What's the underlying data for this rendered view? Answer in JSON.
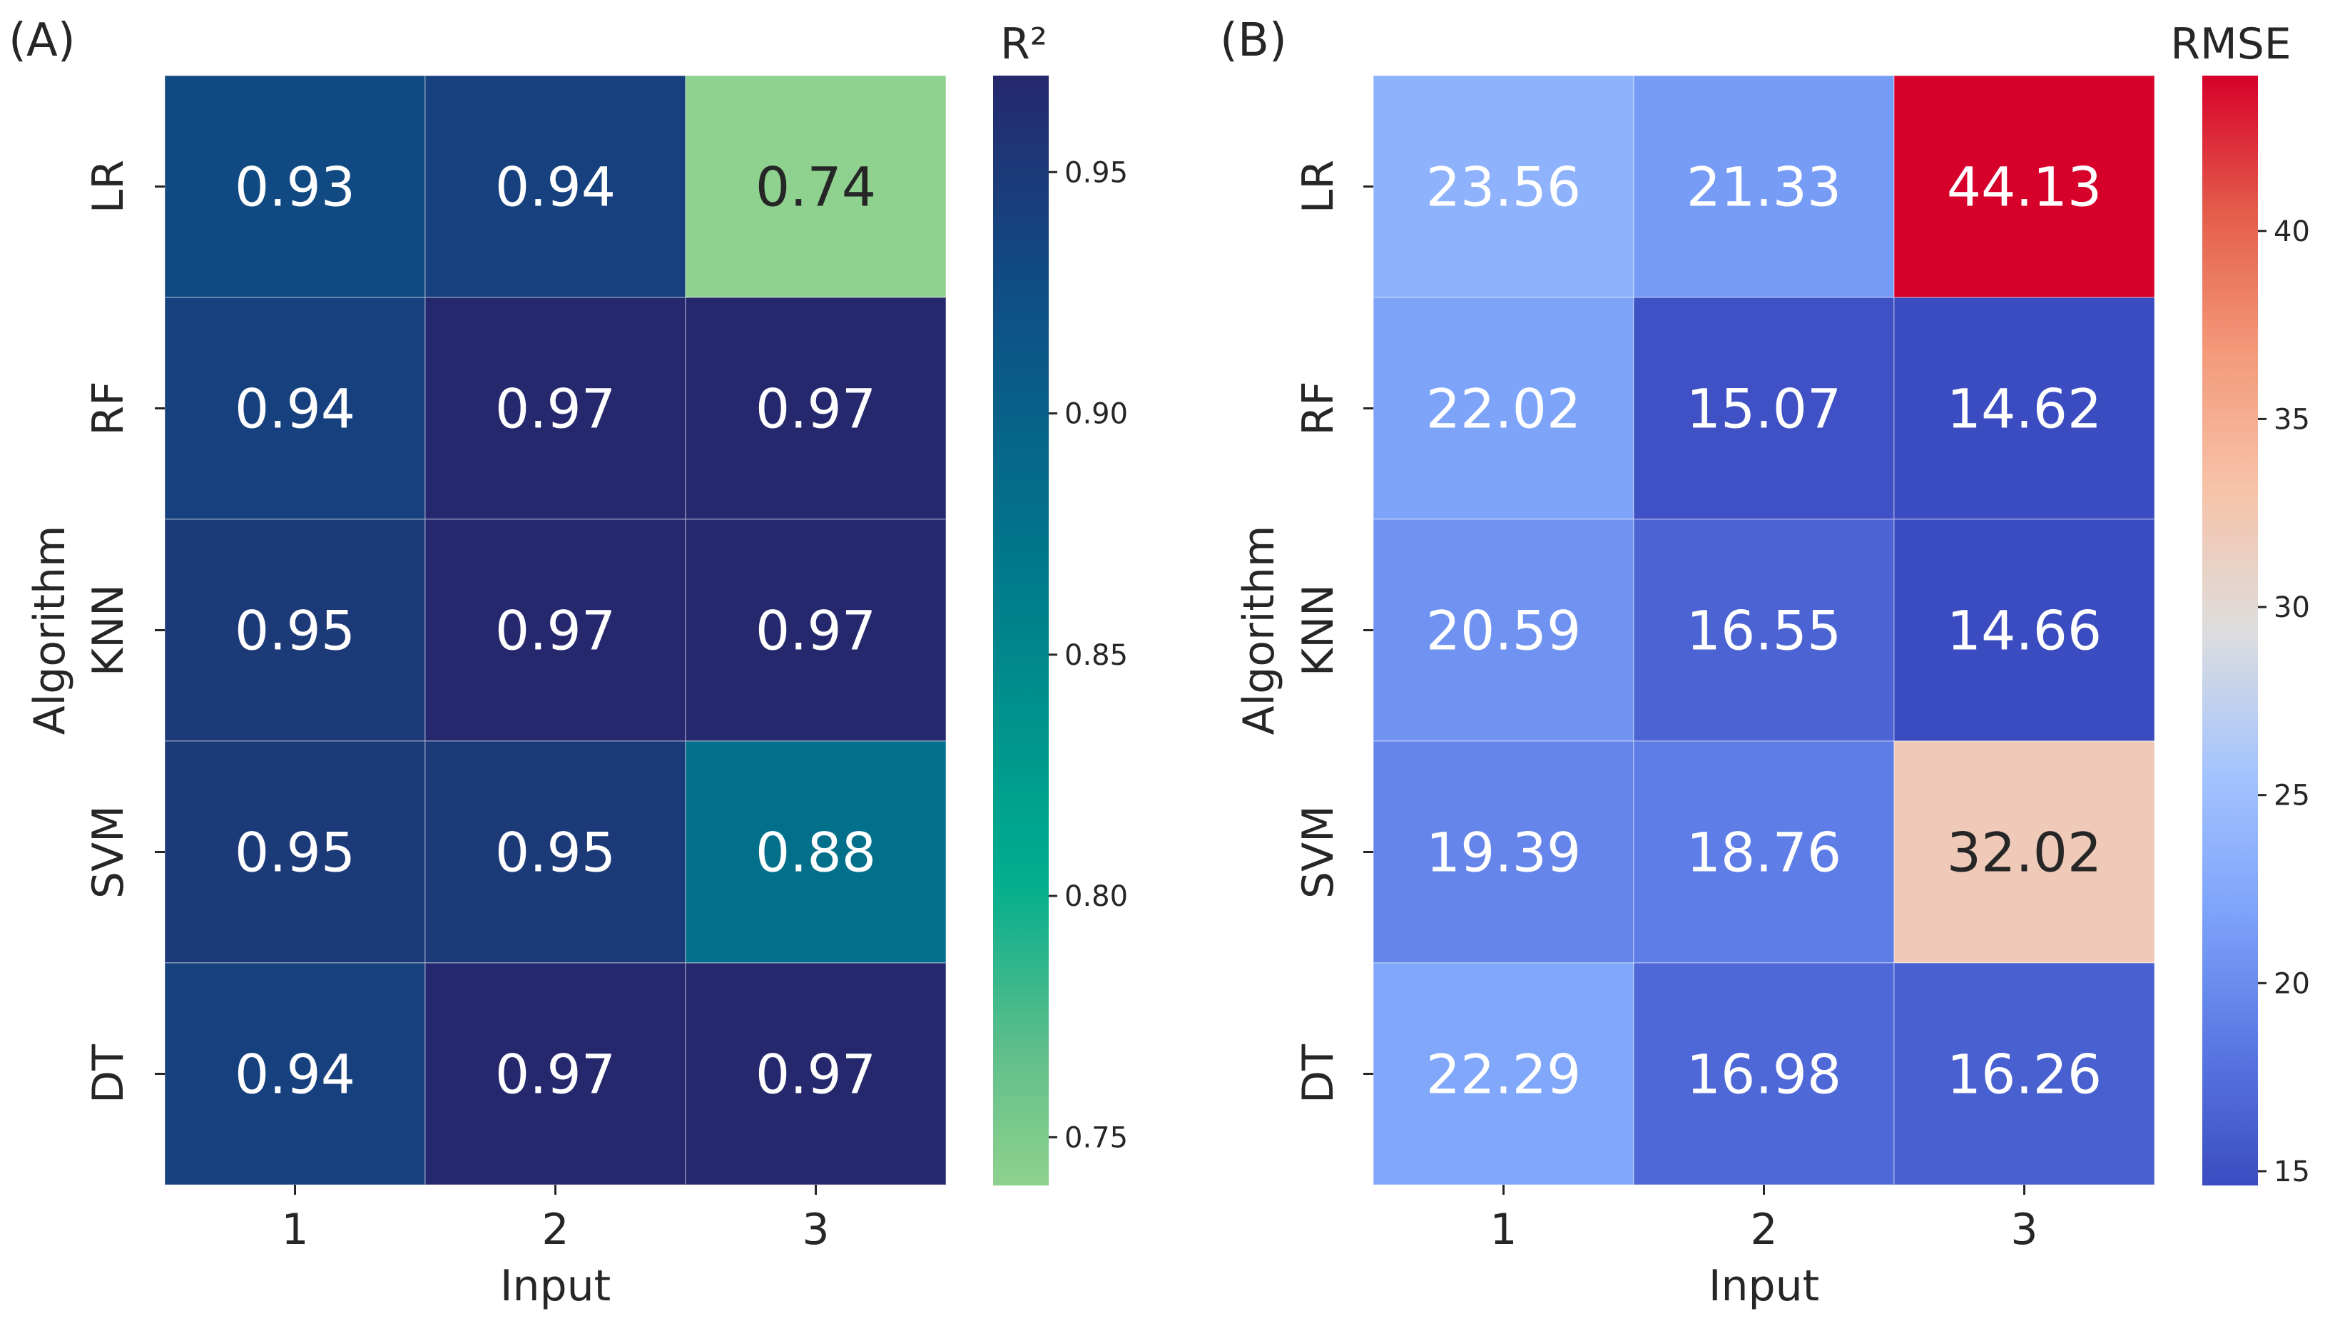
{
  "chart_data": [
    {
      "type": "heatmap",
      "panel_label": "(A)",
      "colorbar_title": "R²",
      "xlabel": "Input",
      "ylabel": "Algorithm",
      "x_categories": [
        "1",
        "2",
        "3"
      ],
      "y_categories": [
        "LR",
        "RF",
        "KNN",
        "SVM",
        "DT"
      ],
      "values": [
        [
          0.93,
          0.94,
          0.74
        ],
        [
          0.94,
          0.97,
          0.97
        ],
        [
          0.95,
          0.97,
          0.97
        ],
        [
          0.95,
          0.95,
          0.88
        ],
        [
          0.94,
          0.97,
          0.97
        ]
      ],
      "value_labels": [
        [
          "0.93",
          "0.94",
          "0.74"
        ],
        [
          "0.94",
          "0.97",
          "0.97"
        ],
        [
          "0.95",
          "0.97",
          "0.97"
        ],
        [
          "0.95",
          "0.95",
          "0.88"
        ],
        [
          "0.94",
          "0.97",
          "0.97"
        ]
      ],
      "colormap": "YlGnBu-like (green to navy)",
      "color_range": [
        0.74,
        0.97
      ],
      "colorbar_ticks": [
        0.75,
        0.8,
        0.85,
        0.9,
        0.95
      ],
      "colorbar_tick_labels": [
        "0.75",
        "0.80",
        "0.85",
        "0.90",
        "0.95"
      ]
    },
    {
      "type": "heatmap",
      "panel_label": "(B)",
      "colorbar_title": "RMSE",
      "xlabel": "Input",
      "ylabel": "Algorithm",
      "x_categories": [
        "1",
        "2",
        "3"
      ],
      "y_categories": [
        "LR",
        "RF",
        "KNN",
        "SVM",
        "DT"
      ],
      "values": [
        [
          23.56,
          21.33,
          44.13
        ],
        [
          22.02,
          15.07,
          14.62
        ],
        [
          20.59,
          16.55,
          14.66
        ],
        [
          19.39,
          18.76,
          32.02
        ],
        [
          22.29,
          16.98,
          16.26
        ]
      ],
      "value_labels": [
        [
          "23.56",
          "21.33",
          "44.13"
        ],
        [
          "22.02",
          "15.07",
          "14.62"
        ],
        [
          "20.59",
          "16.55",
          "14.66"
        ],
        [
          "19.39",
          "18.76",
          "32.02"
        ],
        [
          "22.29",
          "16.98",
          "16.26"
        ]
      ],
      "colormap": "coolwarm",
      "color_range": [
        14.62,
        44.13
      ],
      "colorbar_ticks": [
        15,
        20,
        25,
        30,
        35,
        40
      ],
      "colorbar_tick_labels": [
        "15",
        "20",
        "25",
        "30",
        "35",
        "40"
      ]
    }
  ]
}
